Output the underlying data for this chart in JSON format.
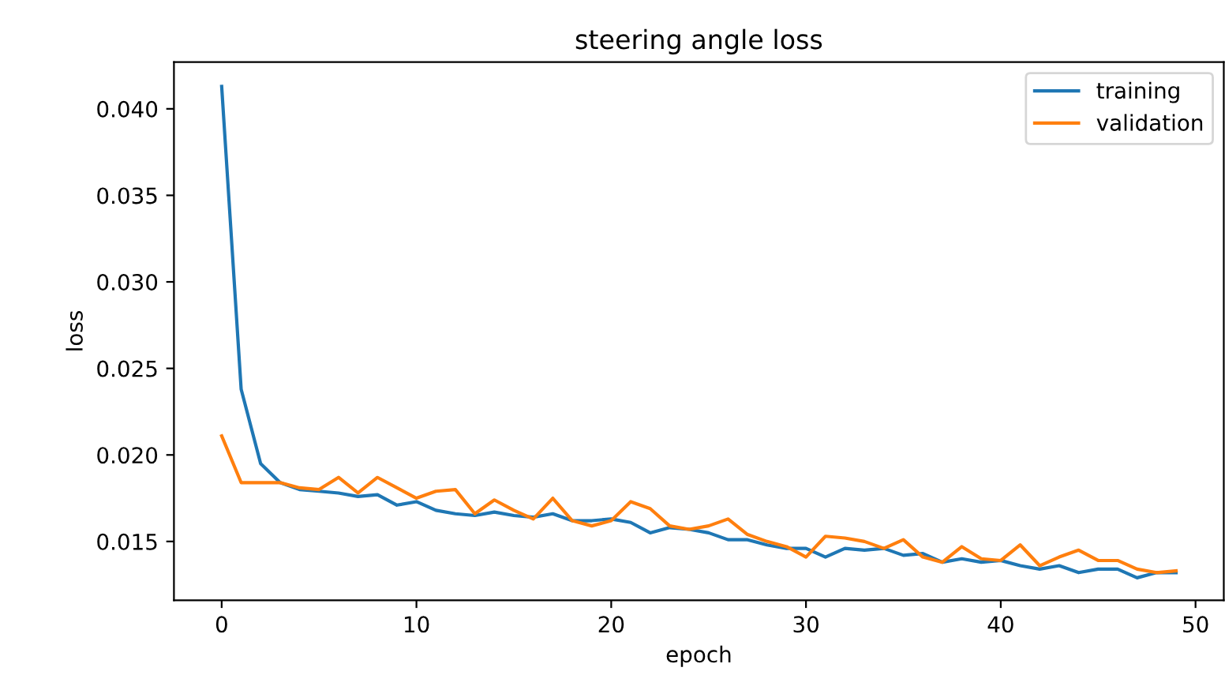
{
  "chart_data": {
    "type": "line",
    "title": "steering angle loss",
    "xlabel": "epoch",
    "ylabel": "loss",
    "x": [
      0,
      1,
      2,
      3,
      4,
      5,
      6,
      7,
      8,
      9,
      10,
      11,
      12,
      13,
      14,
      15,
      16,
      17,
      18,
      19,
      20,
      21,
      22,
      23,
      24,
      25,
      26,
      27,
      28,
      29,
      30,
      31,
      32,
      33,
      34,
      35,
      36,
      37,
      38,
      39,
      40,
      41,
      42,
      43,
      44,
      45,
      46,
      47,
      48,
      49
    ],
    "series": [
      {
        "name": "training",
        "color": "#1f77b4",
        "values": [
          0.0413,
          0.0238,
          0.0195,
          0.0184,
          0.018,
          0.0179,
          0.0178,
          0.0176,
          0.0177,
          0.0171,
          0.0173,
          0.0168,
          0.0166,
          0.0165,
          0.0167,
          0.0165,
          0.0164,
          0.0166,
          0.0162,
          0.0162,
          0.0163,
          0.0161,
          0.0155,
          0.0158,
          0.0157,
          0.0155,
          0.0151,
          0.0151,
          0.0148,
          0.0146,
          0.0146,
          0.0141,
          0.0146,
          0.0145,
          0.0146,
          0.0142,
          0.0143,
          0.0138,
          0.014,
          0.0138,
          0.0139,
          0.0136,
          0.0134,
          0.0136,
          0.0132,
          0.0134,
          0.0134,
          0.0129,
          0.0132,
          0.0132
        ]
      },
      {
        "name": "validation",
        "color": "#ff7f0e",
        "values": [
          0.0211,
          0.0184,
          0.0184,
          0.0184,
          0.0181,
          0.018,
          0.0187,
          0.0178,
          0.0187,
          0.0181,
          0.0175,
          0.0179,
          0.018,
          0.0166,
          0.0174,
          0.0168,
          0.0163,
          0.0175,
          0.0162,
          0.0159,
          0.0162,
          0.0173,
          0.0169,
          0.0159,
          0.0157,
          0.0159,
          0.0163,
          0.0154,
          0.015,
          0.0147,
          0.0141,
          0.0153,
          0.0152,
          0.015,
          0.0146,
          0.0151,
          0.0141,
          0.0138,
          0.0147,
          0.014,
          0.0139,
          0.0148,
          0.0136,
          0.0141,
          0.0145,
          0.0139,
          0.0139,
          0.0134,
          0.0132,
          0.0133
        ]
      }
    ],
    "xlim": [
      -2.45,
      51.45
    ],
    "ylim": [
      0.0116,
      0.0427
    ],
    "xticks": [
      0,
      10,
      20,
      30,
      40,
      50
    ],
    "yticks": [
      {
        "value": 0.015,
        "label": "0.015"
      },
      {
        "value": 0.02,
        "label": "0.020"
      },
      {
        "value": 0.025,
        "label": "0.025"
      },
      {
        "value": 0.03,
        "label": "0.030"
      },
      {
        "value": 0.035,
        "label": "0.035"
      },
      {
        "value": 0.04,
        "label": "0.040"
      }
    ],
    "grid": false,
    "legend": "top right",
    "marker": "none",
    "line_style": "solid"
  }
}
